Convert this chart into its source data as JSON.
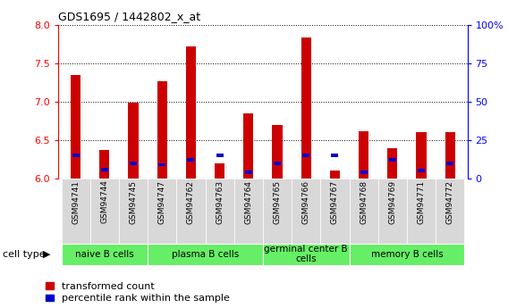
{
  "title": "GDS1695 / 1442802_x_at",
  "samples": [
    "GSM94741",
    "GSM94744",
    "GSM94745",
    "GSM94747",
    "GSM94762",
    "GSM94763",
    "GSM94764",
    "GSM94765",
    "GSM94766",
    "GSM94767",
    "GSM94768",
    "GSM94769",
    "GSM94771",
    "GSM94772"
  ],
  "transformed_count": [
    7.35,
    6.37,
    6.99,
    7.27,
    7.72,
    6.2,
    6.85,
    6.7,
    7.83,
    6.1,
    6.62,
    6.4,
    6.6,
    6.6
  ],
  "percentile_rank": [
    15,
    6,
    10,
    9,
    12,
    15,
    4,
    10,
    15,
    15,
    4,
    12,
    5,
    10
  ],
  "ylim_left": [
    6.0,
    8.0
  ],
  "ylim_right": [
    0,
    100
  ],
  "yticks_left": [
    6.0,
    6.5,
    7.0,
    7.5,
    8.0
  ],
  "yticks_right": [
    0,
    25,
    50,
    75,
    100
  ],
  "bar_color": "#cc0000",
  "percentile_color": "#0000cc",
  "plot_bg": "#ffffff",
  "fig_bg": "#ffffff",
  "tick_area_bg": "#d8d8d8",
  "green_color": "#66ee66",
  "cell_groups": [
    {
      "label": "naive B cells",
      "start": 0,
      "end": 2
    },
    {
      "label": "plasma B cells",
      "start": 3,
      "end": 6
    },
    {
      "label": "germinal center B\ncells",
      "start": 7,
      "end": 9
    },
    {
      "label": "memory B cells",
      "start": 10,
      "end": 13
    }
  ],
  "cell_type_label": "cell type",
  "legend_red": "transformed count",
  "legend_blue": "percentile rank within the sample",
  "bar_width": 0.35
}
